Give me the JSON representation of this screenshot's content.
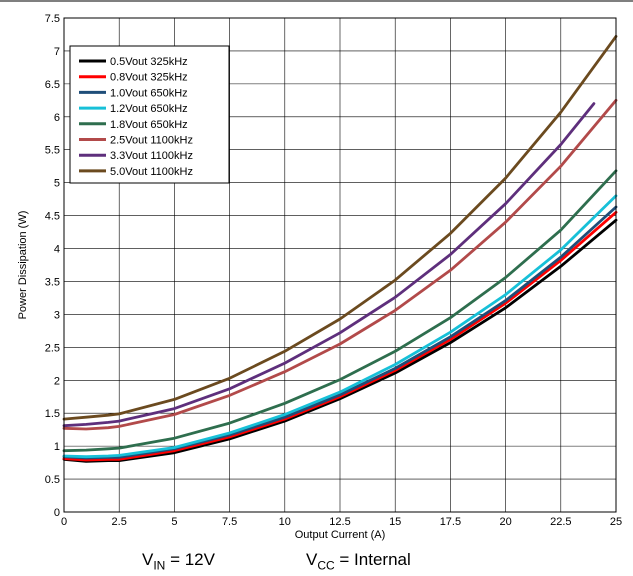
{
  "chart_data": {
    "type": "line",
    "title": "",
    "xlabel": "Output Current (A)",
    "ylabel": "Power Dissipation (W)",
    "xlim": [
      0,
      25
    ],
    "ylim": [
      0,
      7.5
    ],
    "xticks": [
      0,
      2.5,
      5,
      7.5,
      10,
      12.5,
      15,
      17.5,
      20,
      22.5,
      25
    ],
    "yticks": [
      0,
      0.5,
      1,
      1.5,
      2,
      2.5,
      3,
      3.5,
      4,
      4.5,
      5,
      5.5,
      6,
      6.5,
      7,
      7.5
    ],
    "grid": true,
    "legend_position": "top-left",
    "series": [
      {
        "name": "0.5Vout 325kHz",
        "color": "#000000",
        "x": [
          0,
          1,
          2,
          2.5,
          5,
          7.5,
          10,
          12.5,
          15,
          17.5,
          20,
          22.5,
          25
        ],
        "y": [
          0.8,
          0.77,
          0.78,
          0.78,
          0.9,
          1.11,
          1.38,
          1.72,
          2.11,
          2.57,
          3.1,
          3.73,
          4.43
        ]
      },
      {
        "name": "0.8Vout 325kHz",
        "color": "#ff0000",
        "x": [
          0,
          1,
          2,
          2.5,
          5,
          7.5,
          10,
          12.5,
          15,
          17.5,
          20,
          22.5,
          25
        ],
        "y": [
          0.81,
          0.79,
          0.8,
          0.8,
          0.93,
          1.14,
          1.41,
          1.75,
          2.15,
          2.62,
          3.17,
          3.82,
          4.55
        ]
      },
      {
        "name": "1.0Vout 650kHz",
        "color": "#1f4e79",
        "x": [
          0,
          1,
          2,
          2.5,
          5,
          7.5,
          10,
          12.5,
          15,
          17.5,
          20,
          22.5,
          25
        ],
        "y": [
          0.84,
          0.82,
          0.83,
          0.83,
          0.96,
          1.17,
          1.44,
          1.78,
          2.18,
          2.66,
          3.21,
          3.87,
          4.63
        ]
      },
      {
        "name": "1.2Vout 650kHz",
        "color": "#17c0d8",
        "x": [
          0,
          1,
          2,
          2.5,
          5,
          7.5,
          10,
          12.5,
          15,
          17.5,
          20,
          22.5,
          25
        ],
        "y": [
          0.85,
          0.84,
          0.85,
          0.86,
          0.98,
          1.2,
          1.48,
          1.82,
          2.24,
          2.73,
          3.3,
          3.98,
          4.8
        ]
      },
      {
        "name": "1.8Vout 650kHz",
        "color": "#2e6e4e",
        "x": [
          0,
          1,
          2,
          2.5,
          5,
          7.5,
          10,
          12.5,
          15,
          17.5,
          20,
          22.5,
          25
        ],
        "y": [
          0.93,
          0.94,
          0.96,
          0.97,
          1.12,
          1.35,
          1.65,
          2.01,
          2.44,
          2.95,
          3.56,
          4.28,
          5.18
        ]
      },
      {
        "name": "2.5Vout 1100kHz",
        "color": "#b24a4a",
        "x": [
          0,
          1,
          2,
          2.5,
          5,
          7.5,
          10,
          12.5,
          15,
          17.5,
          20,
          22.5,
          25
        ],
        "y": [
          1.27,
          1.26,
          1.28,
          1.3,
          1.48,
          1.77,
          2.13,
          2.55,
          3.06,
          3.67,
          4.4,
          5.25,
          6.25
        ]
      },
      {
        "name": "3.3Vout 1100kHz",
        "color": "#5e2f7c",
        "x": [
          0,
          1,
          2,
          2.5,
          5,
          7.5,
          10,
          12.5,
          15,
          17.5,
          20,
          22.5,
          24
        ],
        "y": [
          1.31,
          1.33,
          1.36,
          1.38,
          1.57,
          1.87,
          2.26,
          2.72,
          3.26,
          3.91,
          4.68,
          5.58,
          6.2
        ]
      },
      {
        "name": "5.0Vout 1100kHz",
        "color": "#6b4a1f",
        "x": [
          0,
          1,
          2,
          2.5,
          5,
          7.5,
          10,
          12.5,
          15,
          17.5,
          20,
          22.5,
          25
        ],
        "y": [
          1.41,
          1.44,
          1.47,
          1.49,
          1.71,
          2.03,
          2.44,
          2.93,
          3.52,
          4.23,
          5.07,
          6.07,
          7.22
        ]
      }
    ]
  },
  "conditions": {
    "vin_sym": "V",
    "vin_sub": "IN",
    "vin_val": " = 12V",
    "vcc_sym": "V",
    "vcc_sub": "CC",
    "vcc_val": " = Internal"
  }
}
